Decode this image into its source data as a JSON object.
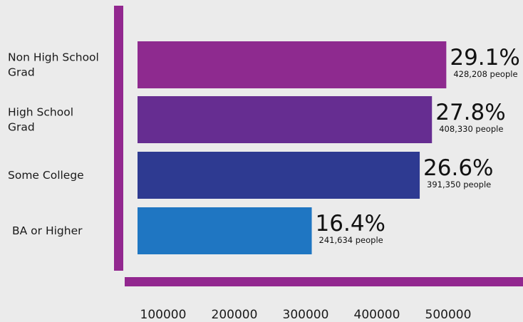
{
  "chart_data": {
    "type": "bar",
    "orientation": "horizontal",
    "categories": [
      {
        "lines": [
          "Non High School",
          "Grad"
        ]
      },
      {
        "lines": [
          "High School",
          "Grad"
        ]
      },
      {
        "lines": [
          "Some College"
        ]
      },
      {
        "lines": [
          "BA or Higher"
        ]
      }
    ],
    "values": [
      428208,
      408330,
      391350,
      241634
    ],
    "percent_labels": [
      "29.1%",
      "27.8%",
      "26.6%",
      "16.4%"
    ],
    "count_labels": [
      "428,208 people",
      "408,330 people",
      "391,350 people",
      "241,634 people"
    ],
    "bar_colors": [
      "#8e2a8f",
      "#662d91",
      "#2e3a91",
      "#1f76c2"
    ],
    "x_ticks": [
      100000,
      200000,
      300000,
      400000,
      500000
    ],
    "x_tick_labels": [
      "100000",
      "200000",
      "300000",
      "400000",
      "500000"
    ],
    "axis_color": "#92278f",
    "title": "",
    "xlabel": "",
    "ylabel": "",
    "legend": "none",
    "grid": false
  }
}
